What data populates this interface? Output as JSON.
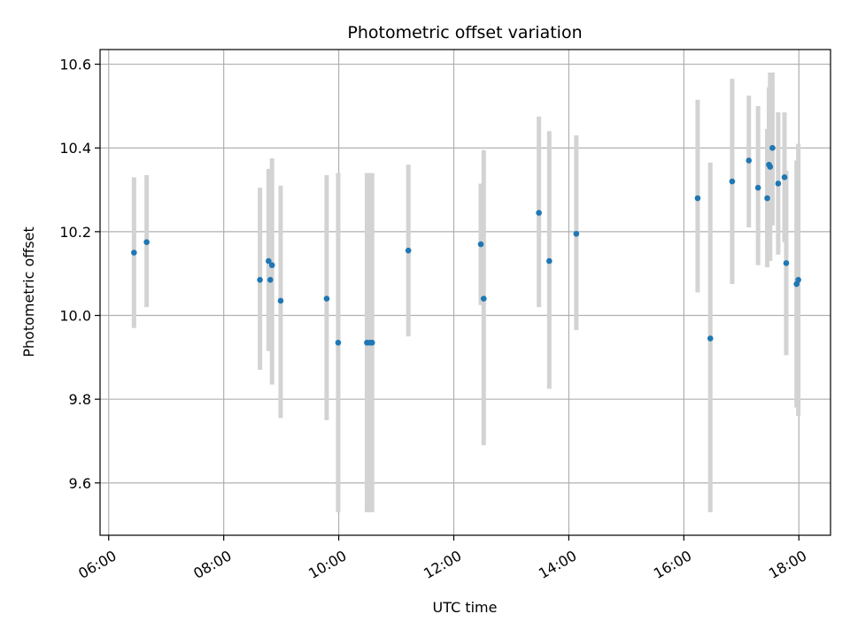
{
  "chart_data": {
    "type": "scatter",
    "title": "Photometric offset variation",
    "xlabel": "UTC time",
    "ylabel": "Photometric offset",
    "x_unit": "hours",
    "xlim": [
      5.85,
      18.55
    ],
    "ylim": [
      9.475,
      10.635
    ],
    "x_ticks": [
      {
        "value": 6,
        "label": "06:00"
      },
      {
        "value": 8,
        "label": "08:00"
      },
      {
        "value": 10,
        "label": "10:00"
      },
      {
        "value": 12,
        "label": "12:00"
      },
      {
        "value": 14,
        "label": "14:00"
      },
      {
        "value": 16,
        "label": "16:00"
      },
      {
        "value": 18,
        "label": "18:00"
      }
    ],
    "y_ticks": [
      {
        "value": 9.6,
        "label": "9.6"
      },
      {
        "value": 9.8,
        "label": "9.8"
      },
      {
        "value": 10.0,
        "label": "10.0"
      },
      {
        "value": 10.2,
        "label": "10.2"
      },
      {
        "value": 10.4,
        "label": "10.4"
      },
      {
        "value": 10.6,
        "label": "10.6"
      }
    ],
    "grid": true,
    "marker_color": "#1f77b4",
    "errorbar_color": "#d3d3d3",
    "series": [
      {
        "points": [
          {
            "x": 6.44,
            "y": 10.15,
            "ymin": 9.97,
            "ymax": 10.33
          },
          {
            "x": 6.66,
            "y": 10.175,
            "ymin": 10.02,
            "ymax": 10.335
          },
          {
            "x": 8.63,
            "y": 10.085,
            "ymin": 9.87,
            "ymax": 10.305
          },
          {
            "x": 8.78,
            "y": 10.13,
            "ymin": 9.915,
            "ymax": 10.35
          },
          {
            "x": 8.81,
            "y": 10.085,
            "ymin": 9.915,
            "ymax": 10.26
          },
          {
            "x": 8.84,
            "y": 10.12,
            "ymin": 9.835,
            "ymax": 10.375
          },
          {
            "x": 8.99,
            "y": 10.035,
            "ymin": 9.755,
            "ymax": 10.31
          },
          {
            "x": 9.79,
            "y": 10.04,
            "ymin": 9.75,
            "ymax": 10.335
          },
          {
            "x": 9.99,
            "y": 9.935,
            "ymin": 9.53,
            "ymax": 10.34
          },
          {
            "x": 10.49,
            "y": 9.935,
            "ymin": 9.53,
            "ymax": 10.34
          },
          {
            "x": 10.54,
            "y": 9.935,
            "ymin": 9.53,
            "ymax": 10.34
          },
          {
            "x": 10.58,
            "y": 9.935,
            "ymin": 9.53,
            "ymax": 10.34
          },
          {
            "x": 11.21,
            "y": 10.155,
            "ymin": 9.95,
            "ymax": 10.36
          },
          {
            "x": 12.47,
            "y": 10.17,
            "ymin": 10.025,
            "ymax": 10.315
          },
          {
            "x": 12.52,
            "y": 10.04,
            "ymin": 9.69,
            "ymax": 10.395
          },
          {
            "x": 13.48,
            "y": 10.245,
            "ymin": 10.02,
            "ymax": 10.475
          },
          {
            "x": 13.66,
            "y": 10.13,
            "ymin": 9.825,
            "ymax": 10.44
          },
          {
            "x": 14.13,
            "y": 10.195,
            "ymin": 9.965,
            "ymax": 10.43
          },
          {
            "x": 16.24,
            "y": 10.28,
            "ymin": 10.055,
            "ymax": 10.515
          },
          {
            "x": 16.46,
            "y": 9.945,
            "ymin": 9.53,
            "ymax": 10.365
          },
          {
            "x": 16.84,
            "y": 10.32,
            "ymin": 10.075,
            "ymax": 10.565
          },
          {
            "x": 17.13,
            "y": 10.37,
            "ymin": 10.21,
            "ymax": 10.525
          },
          {
            "x": 17.29,
            "y": 10.305,
            "ymin": 10.12,
            "ymax": 10.5
          },
          {
            "x": 17.45,
            "y": 10.28,
            "ymin": 10.115,
            "ymax": 10.445
          },
          {
            "x": 17.48,
            "y": 10.36,
            "ymin": 10.16,
            "ymax": 10.545
          },
          {
            "x": 17.5,
            "y": 10.355,
            "ymin": 10.13,
            "ymax": 10.58
          },
          {
            "x": 17.54,
            "y": 10.4,
            "ymin": 10.215,
            "ymax": 10.58
          },
          {
            "x": 17.64,
            "y": 10.315,
            "ymin": 10.145,
            "ymax": 10.485
          },
          {
            "x": 17.75,
            "y": 10.33,
            "ymin": 10.175,
            "ymax": 10.485
          },
          {
            "x": 17.78,
            "y": 10.125,
            "ymin": 9.905,
            "ymax": 10.345
          },
          {
            "x": 17.96,
            "y": 10.075,
            "ymin": 9.78,
            "ymax": 10.37
          },
          {
            "x": 17.99,
            "y": 10.085,
            "ymin": 9.76,
            "ymax": 10.41
          }
        ]
      }
    ]
  }
}
